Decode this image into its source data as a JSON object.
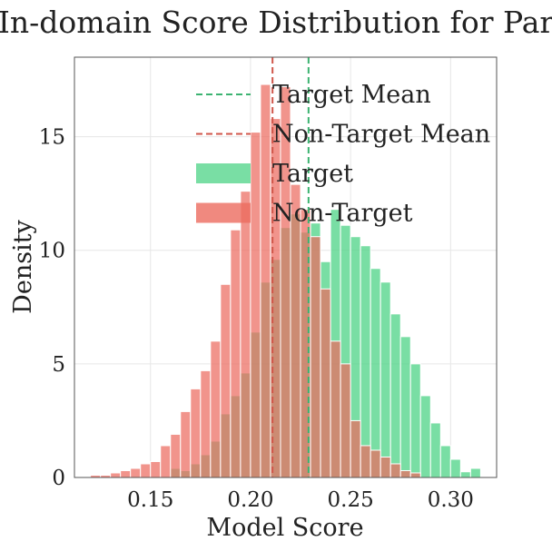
{
  "chart_data": {
    "type": "histogram",
    "title": "In-domain Score Distribution for Park",
    "xlabel": "Model Score",
    "ylabel": "Density",
    "xlim": [
      0.112,
      0.323
    ],
    "ylim": [
      0,
      18.5
    ],
    "xticks": [
      0.15,
      0.2,
      0.25,
      0.3
    ],
    "xtick_labels": [
      "0.15",
      "0.20",
      "0.25",
      "0.30"
    ],
    "yticks": [
      0,
      5,
      10,
      15
    ],
    "ytick_labels": [
      "0",
      "5",
      "10",
      "15"
    ],
    "grid": true,
    "legend_position": "top-right",
    "series": [
      {
        "name": "Target",
        "color": "#58d68d",
        "bin_width": 0.005,
        "bins": [
          [
            0.16,
            0.4
          ],
          [
            0.165,
            0.3
          ],
          [
            0.17,
            0.6
          ],
          [
            0.175,
            1.0
          ],
          [
            0.18,
            1.6
          ],
          [
            0.185,
            2.8
          ],
          [
            0.19,
            3.6
          ],
          [
            0.195,
            4.6
          ],
          [
            0.2,
            6.4
          ],
          [
            0.205,
            8.6
          ],
          [
            0.21,
            9.6
          ],
          [
            0.215,
            11.0
          ],
          [
            0.22,
            11.6
          ],
          [
            0.225,
            10.8
          ],
          [
            0.23,
            11.2
          ],
          [
            0.235,
            9.5
          ],
          [
            0.24,
            11.8
          ],
          [
            0.245,
            11.1
          ],
          [
            0.25,
            10.6
          ],
          [
            0.255,
            10.2
          ],
          [
            0.26,
            9.2
          ],
          [
            0.265,
            8.6
          ],
          [
            0.27,
            7.2
          ],
          [
            0.275,
            6.2
          ],
          [
            0.28,
            5.0
          ],
          [
            0.285,
            3.6
          ],
          [
            0.29,
            2.4
          ],
          [
            0.295,
            1.4
          ],
          [
            0.3,
            0.8
          ],
          [
            0.305,
            0.25
          ],
          [
            0.31,
            0.4
          ]
        ]
      },
      {
        "name": "Non-Target",
        "color": "#ec6b5f",
        "bin_width": 0.005,
        "bins": [
          [
            0.12,
            0.1
          ],
          [
            0.125,
            0.1
          ],
          [
            0.13,
            0.2
          ],
          [
            0.135,
            0.3
          ],
          [
            0.14,
            0.4
          ],
          [
            0.145,
            0.6
          ],
          [
            0.15,
            0.7
          ],
          [
            0.155,
            1.4
          ],
          [
            0.16,
            1.9
          ],
          [
            0.165,
            2.9
          ],
          [
            0.17,
            3.9
          ],
          [
            0.175,
            4.7
          ],
          [
            0.18,
            6.0
          ],
          [
            0.185,
            8.5
          ],
          [
            0.19,
            10.9
          ],
          [
            0.195,
            12.6
          ],
          [
            0.2,
            15.2
          ],
          [
            0.205,
            17.3
          ],
          [
            0.21,
            15.8
          ],
          [
            0.215,
            17.2
          ],
          [
            0.22,
            12.9
          ],
          [
            0.225,
            11.8
          ],
          [
            0.23,
            10.6
          ],
          [
            0.235,
            8.3
          ],
          [
            0.24,
            6.0
          ],
          [
            0.245,
            5.0
          ],
          [
            0.25,
            2.5
          ],
          [
            0.255,
            1.4
          ],
          [
            0.26,
            1.2
          ],
          [
            0.265,
            0.9
          ],
          [
            0.27,
            0.6
          ],
          [
            0.275,
            0.3
          ],
          [
            0.28,
            0.2
          ]
        ]
      }
    ],
    "reference_lines": [
      {
        "name": "Target Mean",
        "x": 0.229,
        "color": "#3cb371",
        "style": "dashed"
      },
      {
        "name": "Non-Target Mean",
        "x": 0.211,
        "color": "#d0564a",
        "style": "dashed"
      }
    ],
    "legend": [
      {
        "label": "Target Mean",
        "kind": "line",
        "color": "#3cb371"
      },
      {
        "label": "Non-Target Mean",
        "kind": "line",
        "color": "#d0564a"
      },
      {
        "label": "Target",
        "kind": "patch",
        "color": "#58d68d"
      },
      {
        "label": "Non-Target",
        "kind": "patch",
        "color": "#ec6b5f"
      }
    ]
  }
}
